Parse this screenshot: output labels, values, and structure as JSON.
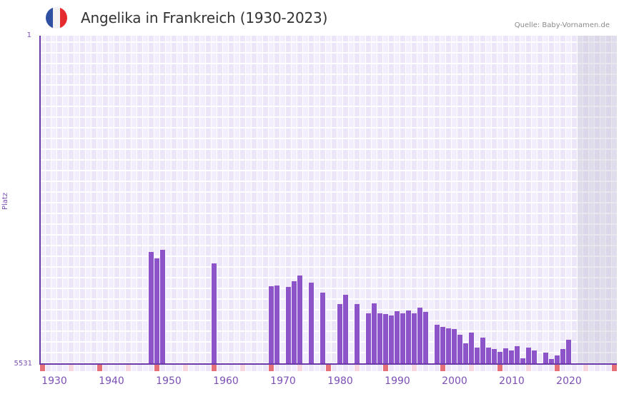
{
  "header": {
    "title": "Angelika in Frankreich (1930-2023)",
    "source": "Quelle: Baby-Vornamen.de",
    "flag": {
      "icon": "france-flag-icon",
      "colors": [
        "#2f4fa3",
        "#f2f2f2",
        "#e62b2e"
      ]
    }
  },
  "axis": {
    "ylabel": "Platz",
    "ytick_top": "1",
    "ytick_bottom": "5531",
    "xticks": [
      "1930",
      "1940",
      "1950",
      "1960",
      "1970",
      "1980",
      "1990",
      "2000",
      "2010",
      "2020"
    ]
  },
  "colors": {
    "bar": "#8c54c8",
    "axis": "#6a3aa8",
    "grid_bg": "#f2eefb",
    "grid_alt": "#ece6f8",
    "marker_strong": "#e57079",
    "marker_light": "#f6d6df",
    "future_shade": "#e2deea"
  },
  "chart_data": {
    "type": "bar",
    "title": "Angelika in Frankreich (1930-2023)",
    "xlabel": "",
    "ylabel": "Platz",
    "y_inverted": true,
    "ylim": [
      1,
      5531
    ],
    "xlim": [
      1928,
      2028
    ],
    "grid": true,
    "x": [
      1947,
      1948,
      1949,
      1958,
      1968,
      1969,
      1971,
      1972,
      1973,
      1975,
      1977,
      1980,
      1981,
      1983,
      1985,
      1986,
      1987,
      1988,
      1989,
      1990,
      1991,
      1992,
      1993,
      1994,
      1995,
      1997,
      1998,
      1999,
      2000,
      2001,
      2002,
      2003,
      2004,
      2005,
      2006,
      2007,
      2008,
      2009,
      2010,
      2011,
      2012,
      2013,
      2014,
      2016,
      2017,
      2018,
      2019,
      2020
    ],
    "values": [
      3643,
      3752,
      3608,
      3836,
      4220,
      4208,
      4232,
      4136,
      4040,
      4160,
      4328,
      4521,
      4365,
      4521,
      4677,
      4509,
      4677,
      4689,
      4713,
      4641,
      4677,
      4629,
      4677,
      4581,
      4653,
      4869,
      4905,
      4929,
      4941,
      5037,
      5182,
      5001,
      5254,
      5086,
      5254,
      5278,
      5326,
      5266,
      5302,
      5230,
      5434,
      5254,
      5302,
      5338,
      5446,
      5386,
      5278,
      5122
    ],
    "xtick_labels": [
      "1930",
      "1940",
      "1950",
      "1960",
      "1970",
      "1980",
      "1990",
      "2000",
      "2010",
      "2020"
    ]
  }
}
